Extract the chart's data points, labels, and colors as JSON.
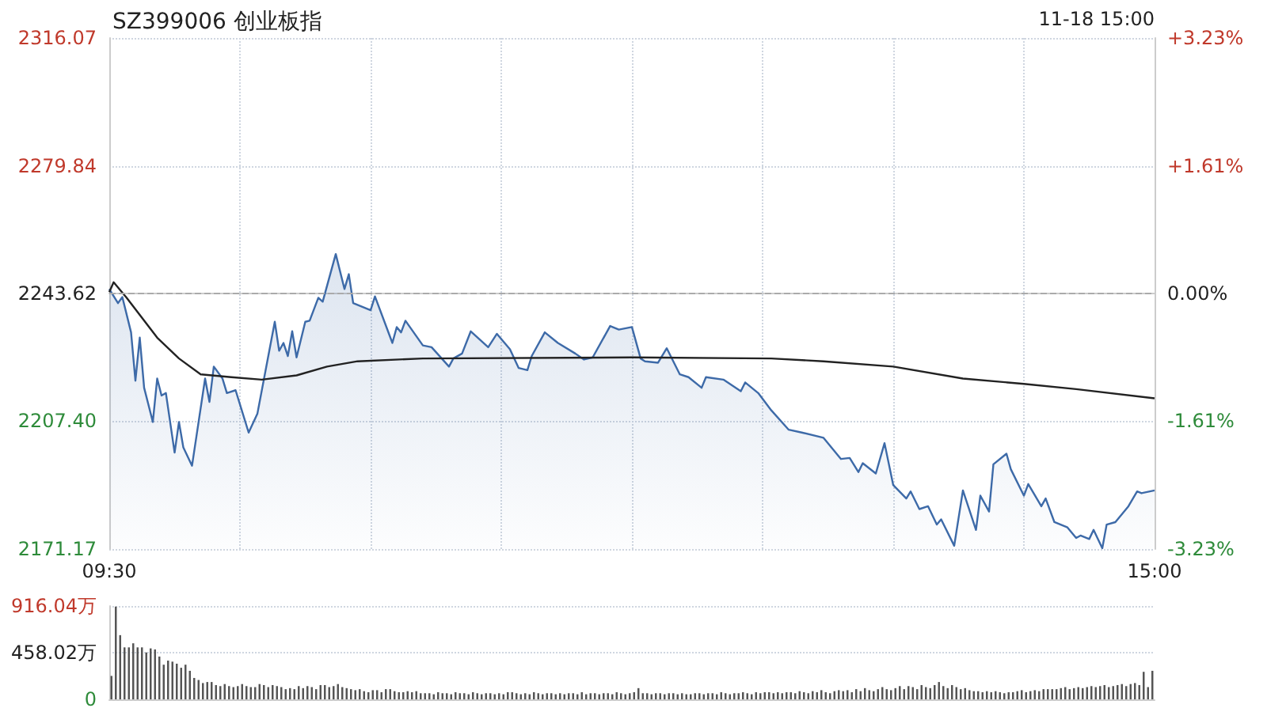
{
  "chart_data": [
    {
      "type": "area",
      "title": "SZ399006 创业板指",
      "annotations": [
        "11-18 15:00"
      ],
      "categories": [
        "09:30",
        null,
        null,
        null,
        null,
        null,
        null,
        null,
        null,
        null,
        null,
        null,
        null,
        null,
        null,
        null,
        null,
        null,
        null,
        null,
        null,
        null,
        null,
        null,
        null,
        null,
        null,
        null,
        null,
        null,
        null,
        null,
        null,
        null,
        null,
        null,
        null,
        null,
        null,
        null,
        null,
        null,
        null,
        null,
        null,
        null,
        null,
        null,
        null,
        null,
        null,
        null,
        null,
        null,
        null,
        null,
        null,
        null,
        null,
        null,
        null,
        null,
        null,
        null,
        null,
        null,
        null,
        null,
        null,
        null,
        null,
        null,
        null,
        null,
        null,
        null,
        null,
        null,
        null,
        null,
        null,
        null,
        null,
        null,
        null,
        null,
        null,
        null,
        null,
        null,
        null,
        null,
        null,
        null,
        null,
        null,
        null,
        null,
        null,
        null,
        null,
        null,
        null,
        null,
        null,
        null,
        null,
        null,
        null,
        null,
        null,
        null,
        null,
        null,
        null,
        null,
        null,
        null,
        null,
        null,
        null,
        null,
        null,
        null,
        null,
        null,
        null,
        null,
        null,
        null,
        null,
        null,
        null,
        null,
        null,
        null,
        null,
        null,
        null,
        null,
        null,
        null,
        null,
        null,
        null,
        null,
        null,
        null,
        null,
        null,
        null,
        null,
        null,
        null,
        null,
        null,
        null,
        null,
        null,
        null,
        null,
        null,
        null,
        null,
        null,
        null,
        null,
        null,
        null,
        null,
        null,
        null,
        null,
        null,
        null,
        null,
        null,
        null,
        null,
        null,
        null,
        null,
        null,
        null,
        null,
        null,
        null,
        null,
        null,
        null,
        null,
        null,
        null,
        null,
        null,
        null,
        null,
        null,
        null,
        null,
        null,
        null,
        null,
        null,
        null,
        null,
        null,
        null,
        null,
        null,
        null,
        null,
        null,
        null,
        null,
        null,
        null,
        null,
        null,
        null,
        null,
        null,
        null,
        null,
        null,
        null,
        null,
        null,
        null,
        null,
        null,
        null,
        null,
        null,
        null,
        null,
        null,
        null,
        null,
        null,
        "15:00"
      ],
      "ylim": [
        2171.17,
        2316.07
      ],
      "yticks": [
        2171.17,
        {
          "value": 2207.4,
          "label": "2207.40"
        },
        2243.62,
        2279.84,
        2316.07
      ],
      "y2lim": [
        -3.23,
        3.23
      ],
      "y2ticks": [
        {
          "value": -3.23,
          "label": "-3.23%"
        },
        {
          "value": -1.61,
          "label": "-1.61%"
        },
        {
          "value": 0,
          "label": "0.00%"
        },
        {
          "value": 1.61,
          "label": "+1.61%"
        },
        {
          "value": 3.23,
          "label": "+3.23%"
        }
      ],
      "grid": true,
      "marker": "none",
      "ref_lines": [
        {
          "axis": "y",
          "value": 2243.62,
          "color": "#aaaaaa",
          "line_style": "dashed"
        }
      ],
      "series": [
        {
          "color": "#3d6aa8",
          "values": [
            2244.9,
            null,
            2240.9,
            2242.6,
            null,
            2232.6,
            2218.9,
            2231.1,
            2216.9,
            null,
            2207.2,
            2219.5,
            2214.7,
            2215.4,
            null,
            2198.5,
            2207.2,
            2200.0,
            null,
            2194.8,
            null,
            null,
            2219.5,
            2212.9,
            2222.9,
            null,
            2219.5,
            2215.4,
            null,
            2216.2,
            null,
            null,
            2204.2,
            null,
            2209.5,
            null,
            null,
            null,
            2235.6,
            2227.4,
            2229.6,
            2225.9,
            2232.9,
            2225.5,
            null,
            2235.6,
            2235.9,
            null,
            2242.4,
            2241.3,
            null,
            null,
            2254.8,
            null,
            2244.9,
            2249.1,
            2240.9,
            null,
            null,
            2239.4,
            2238.9,
            2242.8,
            null,
            null,
            null,
            2229.6,
            2234.1,
            2232.6,
            2235.9,
            null,
            null,
            null,
            2228.9,
            null,
            2228.4,
            null,
            null,
            null,
            2222.9,
            2225.2,
            null,
            2226.6,
            null,
            2232.9,
            null,
            null,
            null,
            2228.4,
            null,
            2232.2,
            null,
            null,
            2227.8,
            null,
            2222.5,
            null,
            2221.9,
            2225.9,
            null,
            null,
            2232.6,
            null,
            null,
            2229.6,
            null,
            null,
            null,
            2226.6,
            null,
            2224.9,
            null,
            2225.5,
            null,
            null,
            null,
            2234.4,
            null,
            2233.4,
            null,
            null,
            2234.1,
            null,
            2225.2,
            2224.4,
            null,
            null,
            2224.0,
            null,
            2228.1,
            null,
            null,
            2220.7,
            null,
            2219.9,
            null,
            null,
            2216.9,
            2219.9,
            null,
            null,
            null,
            2219.2,
            null,
            null,
            null,
            2215.9,
            2218.4,
            null,
            null,
            2215.4,
            null,
            null,
            2210.5,
            null,
            null,
            null,
            2205.0,
            null,
            null,
            2204.2,
            null,
            null,
            null,
            null,
            2202.7,
            null,
            null,
            null,
            2196.7,
            null,
            2197.0,
            null,
            2193.0,
            2195.5,
            null,
            null,
            2192.6,
            null,
            2201.2,
            null,
            2189.3,
            null,
            null,
            2185.5,
            2187.5,
            null,
            2182.5,
            null,
            2183.3,
            null,
            2178.1,
            2179.6,
            null,
            null,
            2172.1,
            null,
            2187.8,
            null,
            null,
            2176.6,
            2186.3,
            null,
            2181.8,
            2195.2,
            null,
            null,
            2198.2,
            2193.8,
            null,
            null,
            2186.3,
            2189.6,
            null,
            null,
            2183.3,
            2185.5,
            null,
            2178.8,
            null,
            null,
            2177.3,
            null,
            2174.3,
            2175.0,
            null,
            2174.0,
            2176.6,
            null,
            2171.4,
            2178.1,
            null,
            2178.8,
            null,
            null,
            2183.3,
            null,
            2187.5,
            2187.0,
            null,
            null,
            2187.8
          ]
        },
        {
          "type": "line",
          "color": "#222222",
          "values": [
            2244.0,
            2246.8,
            null,
            null,
            2242.4,
            null,
            null,
            null,
            null,
            null,
            null,
            2231.1,
            null,
            null,
            null,
            null,
            2225.2,
            null,
            null,
            null,
            null,
            2220.7,
            null,
            null,
            null,
            null,
            null,
            null,
            2219.9,
            null,
            null,
            null,
            null,
            null,
            null,
            2219.2,
            null,
            null,
            null,
            null,
            null,
            null,
            null,
            2220.4,
            null,
            null,
            null,
            null,
            null,
            null,
            2222.9,
            null,
            null,
            null,
            null,
            null,
            null,
            2224.4,
            null,
            null,
            null,
            null,
            null,
            null,
            null,
            null,
            null,
            null,
            null,
            null,
            null,
            null,
            2225.2,
            null,
            null,
            null,
            null,
            null,
            null,
            null,
            null,
            null,
            null,
            null,
            null,
            null,
            null,
            null,
            null,
            null,
            null,
            null,
            null,
            null,
            null,
            null,
            null,
            null,
            null,
            null,
            null,
            null,
            null,
            null,
            null,
            null,
            null,
            null,
            null,
            null,
            null,
            null,
            null,
            null,
            null,
            null,
            null,
            null,
            null,
            null,
            2225.5,
            null,
            null,
            null,
            null,
            null,
            null,
            null,
            null,
            null,
            null,
            null,
            null,
            null,
            null,
            null,
            null,
            null,
            null,
            null,
            null,
            null,
            null,
            null,
            null,
            null,
            null,
            null,
            null,
            null,
            null,
            null,
            2225.2,
            null,
            null,
            null,
            null,
            null,
            null,
            null,
            null,
            null,
            null,
            null,
            2224.4,
            null,
            null,
            null,
            null,
            null,
            null,
            null,
            null,
            null,
            null,
            null,
            null,
            null,
            null,
            null,
            2222.9,
            null,
            null,
            null,
            null,
            null,
            null,
            null,
            null,
            null,
            null,
            null,
            null,
            null,
            null,
            null,
            2219.5,
            null,
            null,
            null,
            null,
            null,
            null,
            null,
            null,
            null,
            null,
            null,
            null,
            null,
            2218.0,
            null,
            null,
            null,
            null,
            null,
            null,
            null,
            null,
            null,
            null,
            null,
            2216.5,
            null,
            null,
            null,
            null,
            null,
            null,
            null,
            null,
            null,
            null,
            null,
            null,
            null,
            null,
            null,
            null,
            null,
            2213.9
          ]
        }
      ]
    },
    {
      "type": "bar",
      "color": "#555555",
      "grid": "y",
      "tick_labels": "y",
      "ylim": [
        0,
        916.04
      ],
      "yticks": [
        0,
        {
          "value": 458.02,
          "label": "458.02万"
        },
        {
          "value": 916.04,
          "label": "916.04万"
        }
      ],
      "categories": [
        null,
        null,
        null,
        null,
        null,
        null,
        null,
        null,
        null,
        null,
        null,
        null,
        null,
        null,
        null,
        null,
        null,
        null,
        null,
        null,
        null,
        null,
        null,
        null,
        null,
        null,
        null,
        null,
        null,
        null,
        null,
        null,
        null,
        null,
        null,
        null,
        null,
        null,
        null,
        null,
        null,
        null,
        null,
        null,
        null,
        null,
        null,
        null,
        null,
        null,
        null,
        null,
        null,
        null,
        null,
        null,
        null,
        null,
        null,
        null,
        null,
        null,
        null,
        null,
        null,
        null,
        null,
        null,
        null,
        null,
        null,
        null,
        null,
        null,
        null,
        null,
        null,
        null,
        null,
        null,
        null,
        null,
        null,
        null,
        null,
        null,
        null,
        null,
        null,
        null,
        null,
        null,
        null,
        null,
        null,
        null,
        null,
        null,
        null,
        null,
        null,
        null,
        null,
        null,
        null,
        null,
        null,
        null,
        null,
        null,
        null,
        null,
        null,
        null,
        null,
        null,
        null,
        null,
        null,
        null,
        null,
        null,
        null,
        null,
        null,
        null,
        null,
        null,
        null,
        null,
        null,
        null,
        null,
        null,
        null,
        null,
        null,
        null,
        null,
        null,
        null,
        null,
        null,
        null,
        null,
        null,
        null,
        null,
        null,
        null,
        null,
        null,
        null,
        null,
        null,
        null,
        null,
        null,
        null,
        null,
        null,
        null,
        null,
        null,
        null,
        null,
        null,
        null,
        null,
        null,
        null,
        null,
        null,
        null,
        null,
        null,
        null,
        null,
        null,
        null,
        null,
        null,
        null,
        null,
        null,
        null,
        null,
        null,
        null,
        null,
        null,
        null,
        null,
        null,
        null,
        null,
        null,
        null,
        null,
        null,
        null,
        null,
        null,
        null,
        null,
        null,
        null,
        null,
        null,
        null,
        null,
        null,
        null,
        null,
        null,
        null,
        null,
        null,
        null,
        null,
        null,
        null,
        null,
        null,
        null,
        null,
        null,
        null,
        null,
        null,
        null,
        null,
        null,
        null,
        null,
        null,
        null,
        null,
        null,
        null
      ],
      "values": [
        230,
        910,
        630,
        510,
        510,
        550,
        510,
        510,
        460,
        500,
        490,
        420,
        340,
        380,
        370,
        350,
        310,
        340,
        280,
        210,
        190,
        160,
        170,
        170,
        140,
        130,
        150,
        130,
        120,
        130,
        150,
        130,
        120,
        120,
        150,
        140,
        120,
        140,
        130,
        120,
        100,
        110,
        100,
        130,
        110,
        130,
        120,
        100,
        140,
        140,
        120,
        130,
        150,
        120,
        110,
        100,
        90,
        100,
        80,
        70,
        90,
        90,
        70,
        100,
        100,
        80,
        70,
        70,
        80,
        70,
        80,
        60,
        60,
        60,
        50,
        70,
        60,
        60,
        50,
        70,
        60,
        60,
        50,
        70,
        60,
        50,
        60,
        60,
        50,
        60,
        50,
        70,
        70,
        60,
        50,
        60,
        50,
        70,
        60,
        50,
        60,
        60,
        50,
        60,
        50,
        60,
        60,
        50,
        70,
        50,
        60,
        60,
        50,
        60,
        60,
        50,
        70,
        60,
        50,
        60,
        70,
        110,
        60,
        60,
        50,
        60,
        60,
        50,
        60,
        60,
        50,
        60,
        50,
        50,
        60,
        60,
        50,
        60,
        60,
        50,
        70,
        60,
        50,
        60,
        60,
        70,
        60,
        50,
        70,
        60,
        70,
        70,
        60,
        70,
        60,
        70,
        70,
        60,
        80,
        70,
        60,
        80,
        70,
        90,
        70,
        60,
        80,
        90,
        80,
        90,
        70,
        100,
        80,
        110,
        90,
        80,
        100,
        120,
        100,
        90,
        110,
        130,
        100,
        130,
        120,
        100,
        140,
        120,
        110,
        140,
        170,
        130,
        110,
        140,
        120,
        100,
        110,
        90,
        80,
        80,
        70,
        80,
        70,
        80,
        70,
        60,
        70,
        70,
        80,
        90,
        70,
        80,
        90,
        80,
        100,
        100,
        100,
        100,
        110,
        120,
        100,
        110,
        120,
        110,
        120,
        130,
        120,
        130,
        140,
        120,
        130,
        140,
        150,
        130,
        150,
        160,
        140,
        270,
        120,
        280
      ]
    }
  ]
}
